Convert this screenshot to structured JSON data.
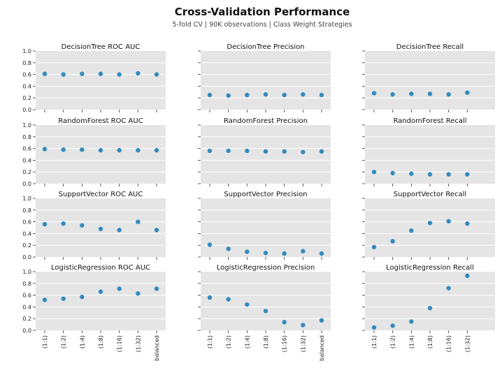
{
  "figure": {
    "title": "Cross-Validation Performance",
    "subtitle": "5-fold CV | 90K observations | Class Weight Strategies"
  },
  "colors": {
    "point": "#348ABD",
    "panel_bg": "#E5E5E5",
    "grid": "#ffffff"
  },
  "chart_data": [
    {
      "type": "scatter",
      "title": "DecisionTree ROC AUC",
      "ylim": [
        0,
        1
      ],
      "yticks": [
        "0.0",
        "0.2",
        "0.4",
        "0.6",
        "0.8",
        "1.0"
      ],
      "categories": [],
      "values": [
        0.61,
        0.6,
        0.61,
        0.61,
        0.6,
        0.62,
        0.6
      ]
    },
    {
      "type": "scatter",
      "title": "DecisionTree Precision",
      "ylim": [
        0,
        1
      ],
      "yticks": [],
      "categories": [],
      "values": [
        0.25,
        0.24,
        0.25,
        0.26,
        0.25,
        0.26,
        0.25
      ]
    },
    {
      "type": "scatter",
      "title": "DecisionTree Recall",
      "ylim": [
        0,
        1
      ],
      "yticks": [],
      "categories": [],
      "values": [
        0.28,
        0.26,
        0.27,
        0.27,
        0.26,
        0.29
      ]
    },
    {
      "type": "scatter",
      "title": "RandomForest ROC AUC",
      "ylim": [
        0,
        1
      ],
      "yticks": [
        "0.0",
        "0.2",
        "0.4",
        "0.6",
        "0.8",
        "1.0"
      ],
      "categories": [],
      "values": [
        0.59,
        0.58,
        0.58,
        0.57,
        0.57,
        0.57,
        0.57
      ]
    },
    {
      "type": "scatter",
      "title": "RandomForest Precision",
      "ylim": [
        0,
        1
      ],
      "yticks": [],
      "categories": [],
      "values": [
        0.56,
        0.56,
        0.56,
        0.55,
        0.55,
        0.54,
        0.55
      ]
    },
    {
      "type": "scatter",
      "title": "RandomForest Recall",
      "ylim": [
        0,
        1
      ],
      "yticks": [],
      "categories": [],
      "values": [
        0.2,
        0.18,
        0.17,
        0.16,
        0.16,
        0.16
      ]
    },
    {
      "type": "scatter",
      "title": "SupportVector ROC AUC",
      "ylim": [
        0,
        1
      ],
      "yticks": [
        "0.0",
        "0.2",
        "0.4",
        "0.6",
        "0.8",
        "1.0"
      ],
      "categories": [],
      "values": [
        0.56,
        0.57,
        0.54,
        0.48,
        0.46,
        0.6,
        0.46
      ]
    },
    {
      "type": "scatter",
      "title": "SupportVector Precision",
      "ylim": [
        0,
        1
      ],
      "yticks": [],
      "categories": [],
      "values": [
        0.21,
        0.14,
        0.09,
        0.07,
        0.06,
        0.1,
        0.06
      ]
    },
    {
      "type": "scatter",
      "title": "SupportVector Recall",
      "ylim": [
        0,
        1
      ],
      "yticks": [],
      "categories": [],
      "values": [
        0.17,
        0.27,
        0.45,
        0.58,
        0.61,
        0.57
      ]
    },
    {
      "type": "scatter",
      "title": "LogisticRegression ROC AUC",
      "ylim": [
        0,
        1
      ],
      "yticks": [
        "0.0",
        "0.2",
        "0.4",
        "0.6",
        "0.8",
        "1.0"
      ],
      "categories": [
        "(1:1)",
        "(1:2)",
        "(1:4)",
        "(1:8)",
        "(1:16)",
        "(1:32)",
        "balanced"
      ],
      "values": [
        0.52,
        0.54,
        0.57,
        0.66,
        0.71,
        0.63,
        0.71
      ]
    },
    {
      "type": "scatter",
      "title": "LogisticRegression Precision",
      "ylim": [
        0,
        1
      ],
      "yticks": [],
      "categories": [
        "(1:1)",
        "(1:2)",
        "(1:4)",
        "(1:8)",
        "(1:16)",
        "(1:32)",
        "balanced"
      ],
      "values": [
        0.56,
        0.53,
        0.44,
        0.33,
        0.14,
        0.09,
        0.17
      ]
    },
    {
      "type": "scatter",
      "title": "LogisticRegression Recall",
      "ylim": [
        0,
        1
      ],
      "yticks": [],
      "categories": [
        "(1:1)",
        "(1:2)",
        "(1:4)",
        "(1:8)",
        "(1:16)",
        "(1:32)"
      ],
      "values": [
        0.05,
        0.08,
        0.15,
        0.38,
        0.72,
        0.93
      ]
    }
  ]
}
